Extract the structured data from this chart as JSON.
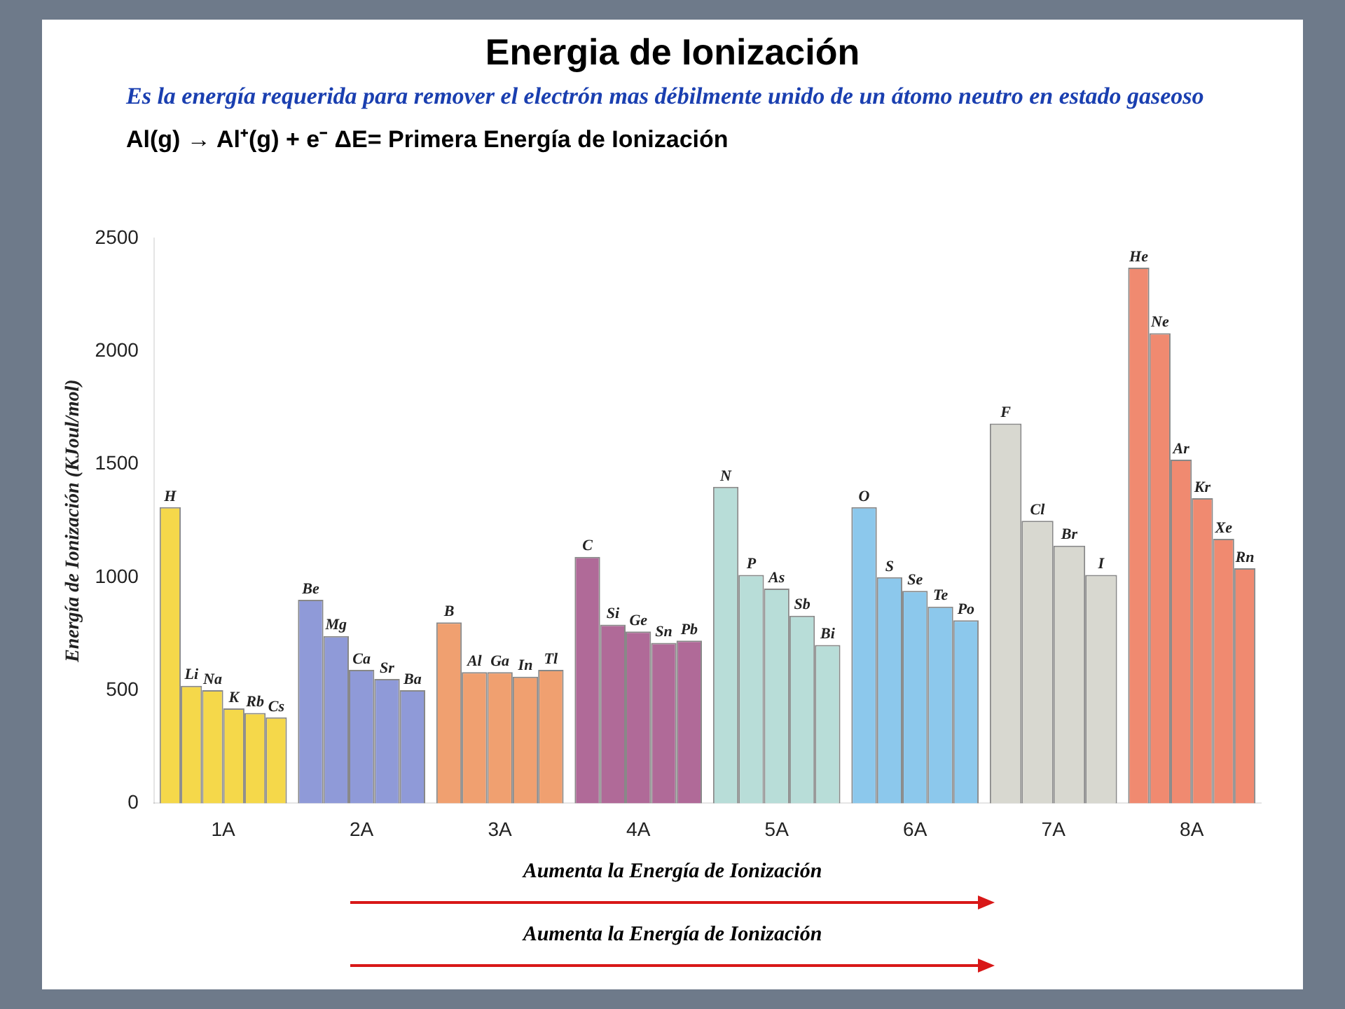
{
  "chart_data": {
    "type": "bar",
    "title": "Energia de Ionización",
    "subtitle": "Es la energía requerida para remover el electrón mas débilmente unido de un átomo neutro en estado gaseoso",
    "ylabel": "Energía de Ionización (KJoul/mol)",
    "xlabel": "Aumenta la Energía de Ionización",
    "annotations": [
      "Al(g) → Al⁺(g) + e⁻   ΔE= Primera Energía de Ionización",
      "Aumenta la Energía de Ionización"
    ],
    "categories": [
      "1A",
      "2A",
      "3A",
      "4A",
      "5A",
      "6A",
      "7A",
      "8A"
    ],
    "ylim": [
      0,
      2500
    ],
    "yticks": [
      0,
      500,
      1000,
      1500,
      2000,
      2500
    ],
    "grid": false,
    "legend": false,
    "series": [
      {
        "colors": [
          "#f5d84a",
          "#8f9ad8",
          "#f0a070",
          "#b06a98",
          "#b8ddd8",
          "#8cc8ec",
          "#d8d8d0",
          "#f08a70"
        ],
        "values": [
          1310,
          null,
          null,
          null,
          null,
          null,
          null,
          2370
        ],
        "value_labels": [
          "H",
          null,
          null,
          null,
          null,
          null,
          null,
          "He"
        ]
      },
      {
        "colors": [
          "#f5d84a",
          "#8f9ad8",
          "#f0a070",
          "#b06a98",
          "#b8ddd8",
          "#8cc8ec",
          "#d8d8d0",
          "#f08a70"
        ],
        "values": [
          520,
          900,
          800,
          1090,
          1400,
          1310,
          1680,
          2080
        ],
        "value_labels": [
          "Li",
          "Be",
          "B",
          "C",
          "N",
          "O",
          "F",
          "Ne"
        ]
      },
      {
        "colors": [
          "#f5d84a",
          "#8f9ad8",
          "#f0a070",
          "#b06a98",
          "#b8ddd8",
          "#8cc8ec",
          "#d8d8d0",
          "#f08a70"
        ],
        "values": [
          500,
          740,
          580,
          790,
          1010,
          1000,
          1250,
          1520
        ],
        "value_labels": [
          "Na",
          "Mg",
          "Al",
          "Si",
          "P",
          "S",
          "Cl",
          "Ar"
        ]
      },
      {
        "colors": [
          "#f5d84a",
          "#8f9ad8",
          "#f0a070",
          "#b06a98",
          "#b8ddd8",
          "#8cc8ec",
          "#d8d8d0",
          "#f08a70"
        ],
        "values": [
          420,
          590,
          580,
          760,
          950,
          940,
          1140,
          1350
        ],
        "value_labels": [
          "K",
          "Ca",
          "Ga",
          "Ge",
          "As",
          "Se",
          "Br",
          "Kr"
        ]
      },
      {
        "colors": [
          "#f5d84a",
          "#8f9ad8",
          "#f0a070",
          "#b06a98",
          "#b8ddd8",
          "#8cc8ec",
          "#d8d8d0",
          "#f08a70"
        ],
        "values": [
          400,
          550,
          560,
          710,
          830,
          870,
          1010,
          1170
        ],
        "value_labels": [
          "Rb",
          "Sr",
          "In",
          "Sn",
          "Sb",
          "Te",
          "I",
          "Xe"
        ]
      },
      {
        "colors": [
          "#f5d84a",
          "#8f9ad8",
          "#f0a070",
          "#b06a98",
          "#b8ddd8",
          "#8cc8ec",
          "#d8d8d0",
          "#f08a70"
        ],
        "values": [
          380,
          500,
          590,
          720,
          700,
          810,
          null,
          1040
        ],
        "value_labels": [
          "Cs",
          "Ba",
          "Tl",
          "Pb",
          "Bi",
          "Po",
          null,
          "Rn"
        ]
      }
    ]
  }
}
